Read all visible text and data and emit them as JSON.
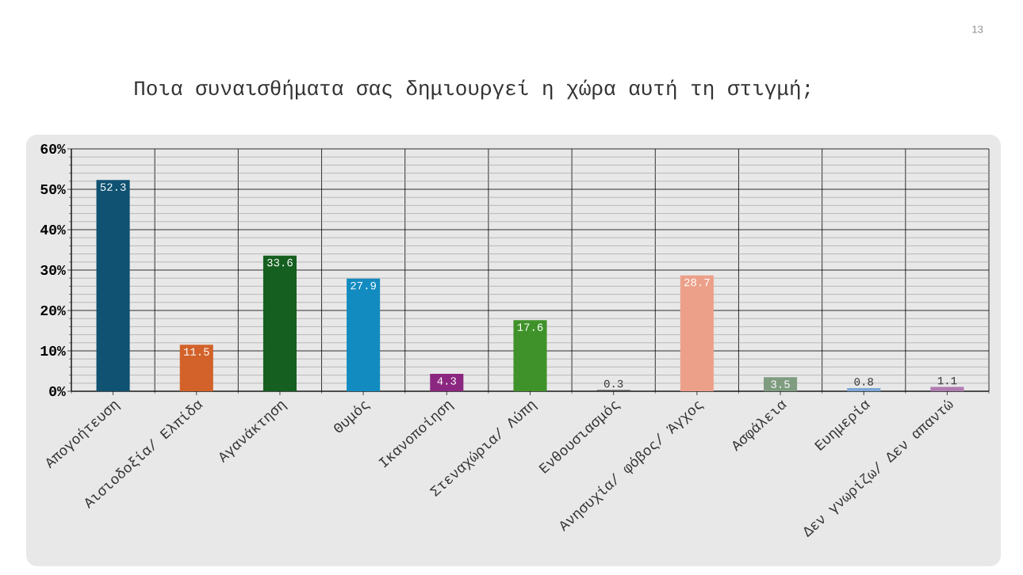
{
  "chart_data": {
    "type": "bar",
    "title": "Ποια συναισθήματα σας δημιουργεί η χώρα αυτή τη στιγμή;",
    "categories": [
      "Απογοήτευση",
      "Αισιοδοξία/ Ελπίδα",
      "Αγανάκτηση",
      "Θυμός",
      "Ικανοποίηση",
      "Στεναχώρια/ Λύπη",
      "Ενθουσιασμός",
      "Ανησυχία/ φόβος/ Άγχος",
      "Ασφάλεια",
      "Ευημερία",
      "Δεν γνωρίζω/ Δεν απαντώ"
    ],
    "values": [
      52.3,
      11.5,
      33.6,
      27.9,
      4.3,
      17.6,
      0.3,
      28.7,
      3.5,
      0.8,
      1.1
    ],
    "colors": [
      "#0f5272",
      "#d2622a",
      "#155f20",
      "#128bc0",
      "#8b2780",
      "#3f9229",
      "#404040",
      "#eca089",
      "#7f9c80",
      "#7aa7d6",
      "#b07bb0"
    ],
    "ylim": [
      0,
      60
    ],
    "yticks": [
      {
        "value": 0,
        "label": "0%"
      },
      {
        "value": 10,
        "label": "10%"
      },
      {
        "value": 20,
        "label": "20%"
      },
      {
        "value": 30,
        "label": "30%"
      },
      {
        "value": 40,
        "label": "40%"
      },
      {
        "value": 50,
        "label": "50%"
      },
      {
        "value": 60,
        "label": "60%"
      }
    ],
    "grid": true,
    "data_labels": true,
    "annotations": [
      "13"
    ]
  }
}
